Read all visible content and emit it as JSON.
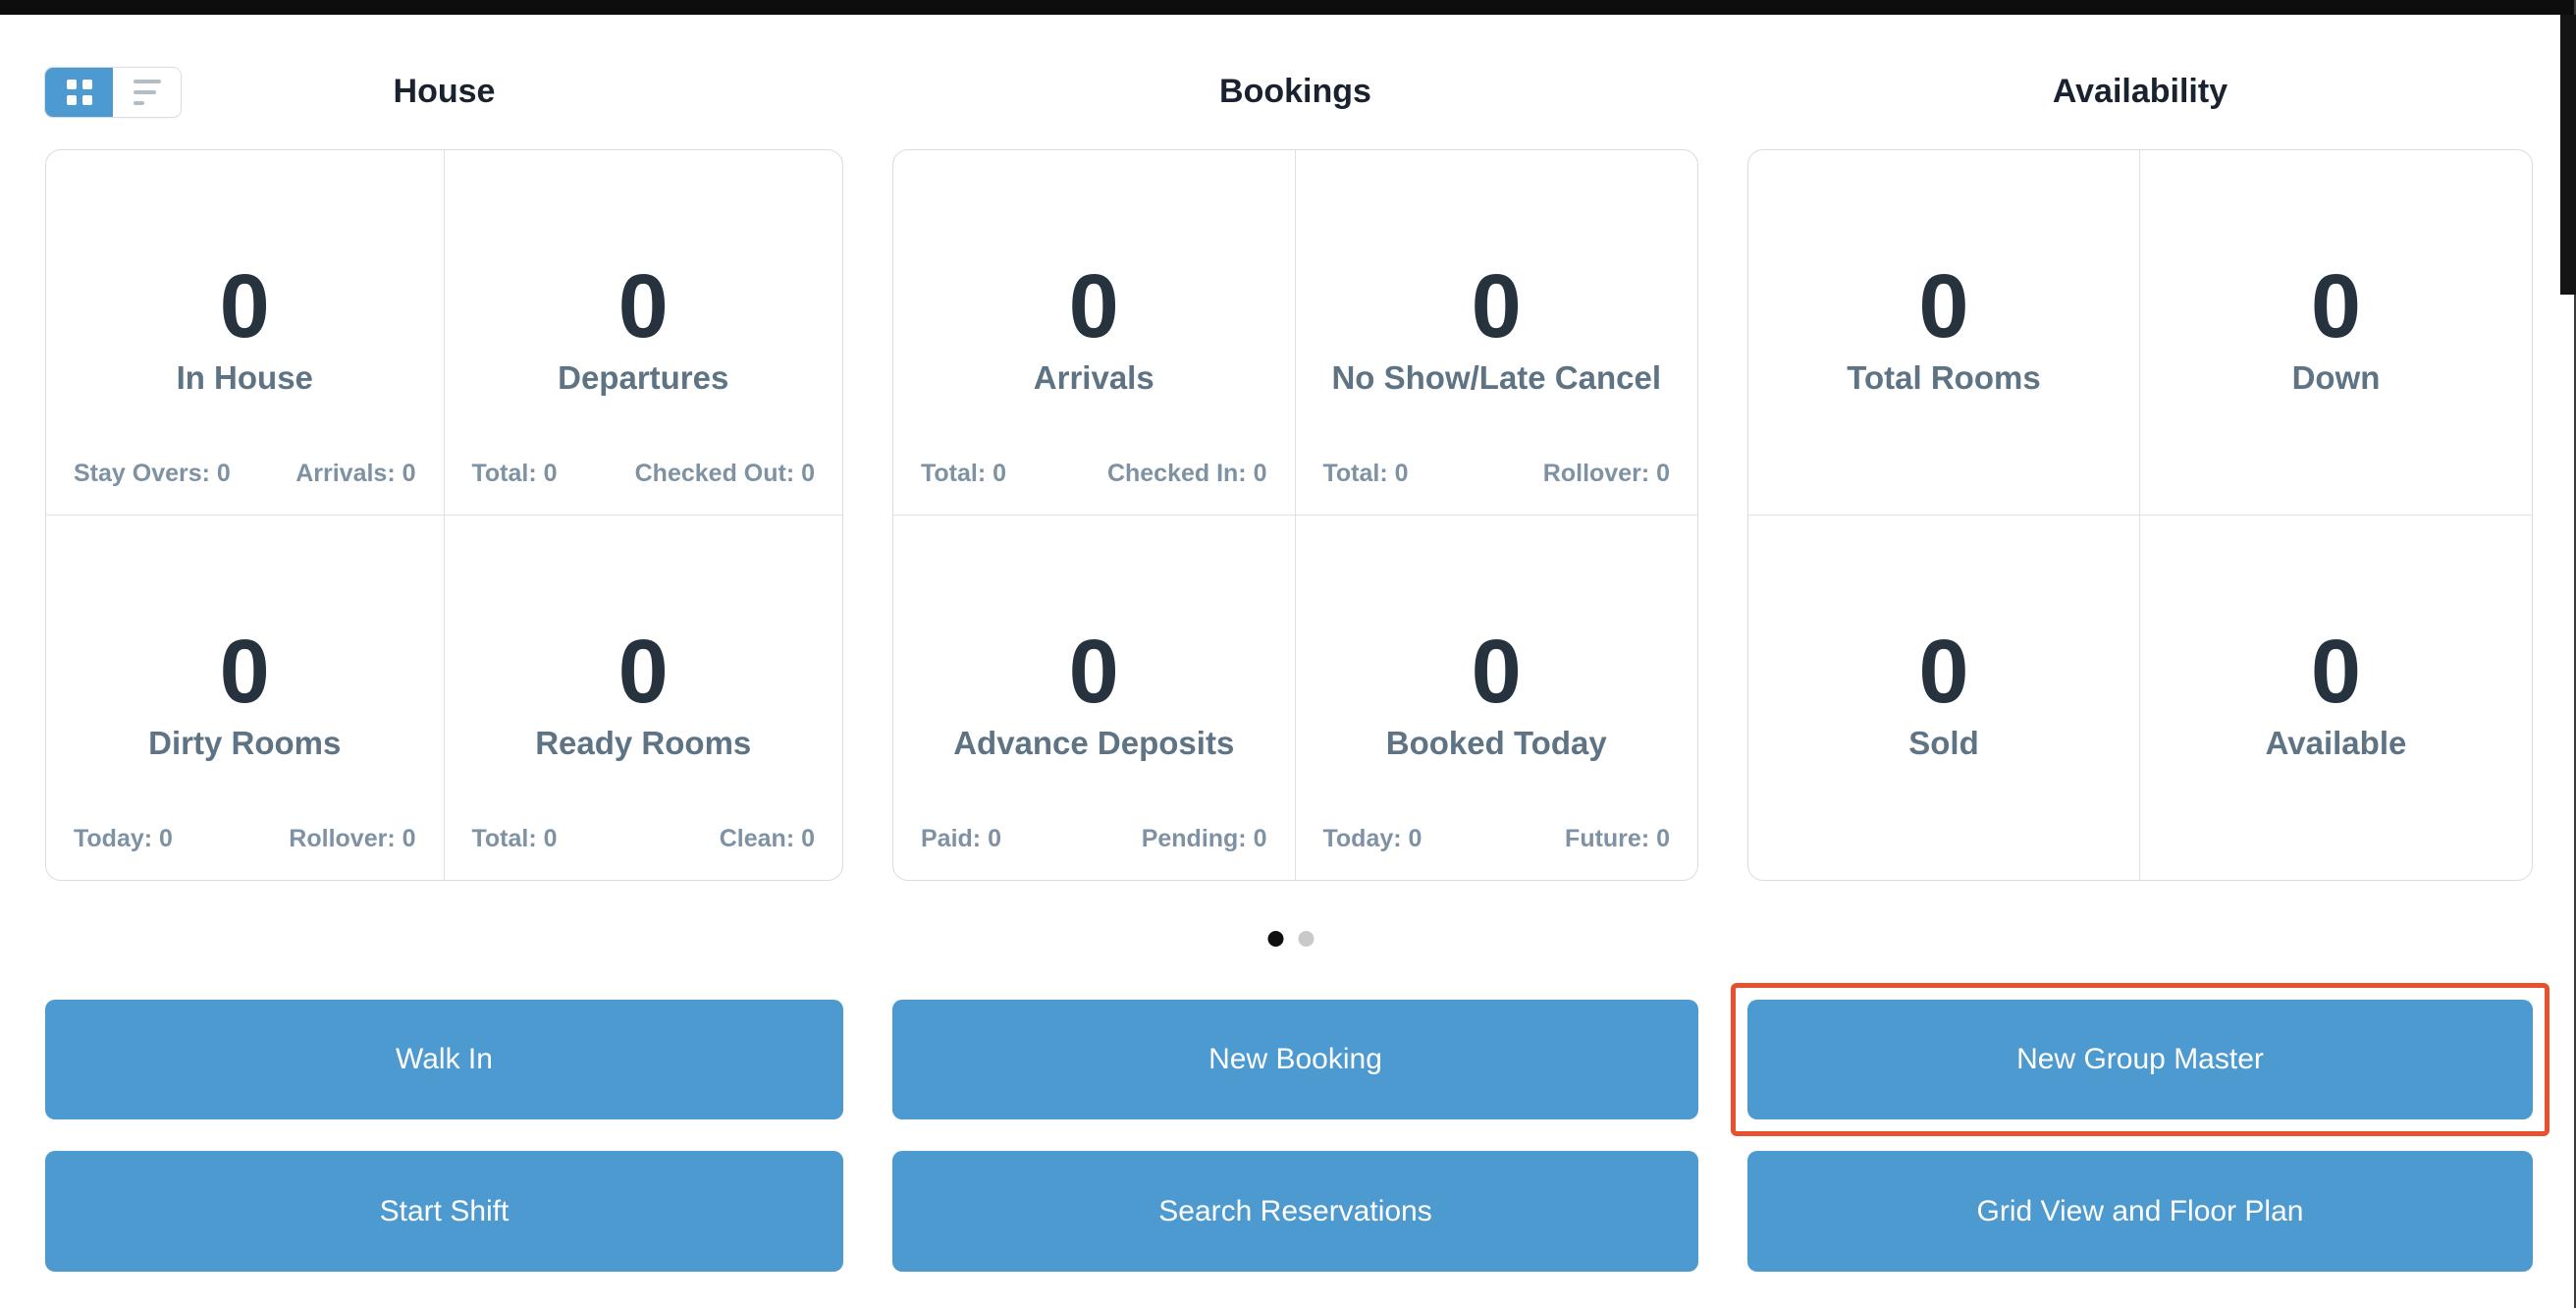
{
  "view_toggle": {
    "grid_icon": "grid-view",
    "list_icon": "list-view",
    "active": "grid"
  },
  "columns": [
    {
      "title": "House",
      "cards": [
        {
          "value": "0",
          "label": "In House",
          "stat_left": "Stay Overs: 0",
          "stat_right": "Arrivals: 0",
          "has_menu_icon": true
        },
        {
          "value": "0",
          "label": "Departures",
          "stat_left": "Total: 0",
          "stat_right": "Checked Out: 0",
          "has_menu_icon": true
        },
        {
          "value": "0",
          "label": "Dirty Rooms",
          "stat_left": "Today: 0",
          "stat_right": "Rollover: 0",
          "has_menu_icon": true
        },
        {
          "value": "0",
          "label": "Ready Rooms",
          "stat_left": "Total: 0",
          "stat_right": "Clean: 0",
          "has_menu_icon": true
        }
      ]
    },
    {
      "title": "Bookings",
      "cards": [
        {
          "value": "0",
          "label": "Arrivals",
          "stat_left": "Total: 0",
          "stat_right": "Checked In: 0",
          "has_menu_icon": true
        },
        {
          "value": "0",
          "label": "No Show/Late Cancel",
          "stat_left": "Total: 0",
          "stat_right": "Rollover: 0",
          "has_menu_icon": true
        },
        {
          "value": "0",
          "label": "Advance Deposits",
          "stat_left": "Paid: 0",
          "stat_right": "Pending: 0",
          "has_menu_icon": true
        },
        {
          "value": "0",
          "label": "Booked Today",
          "stat_left": "Today: 0",
          "stat_right": "Future: 0",
          "has_menu_icon": true
        }
      ]
    },
    {
      "title": "Availability",
      "cards": [
        {
          "value": "0",
          "label": "Total Rooms",
          "has_menu_icon": false
        },
        {
          "value": "0",
          "label": "Down",
          "has_menu_icon": true
        },
        {
          "value": "0",
          "label": "Sold",
          "has_menu_icon": false
        },
        {
          "value": "0",
          "label": "Available",
          "has_menu_icon": true
        }
      ]
    }
  ],
  "pagination": {
    "total_pages": 2,
    "active_page": 1
  },
  "buttons": [
    {
      "label": "Walk In",
      "highlighted": false
    },
    {
      "label": "New Booking",
      "highlighted": false
    },
    {
      "label": "New Group Master",
      "highlighted": true
    },
    {
      "label": "Start Shift",
      "highlighted": false
    },
    {
      "label": "Search Reservations",
      "highlighted": false
    },
    {
      "label": "Grid View and Floor Plan",
      "highlighted": false
    }
  ],
  "colors": {
    "accent_blue": "#4d9ad1",
    "highlight_red": "#e8502e",
    "number_text": "#26323e",
    "label_text": "#5e7384",
    "stat_text": "#7e92a3",
    "card_border": "#d8dde3",
    "topbar_black": "#0d0d0d"
  }
}
